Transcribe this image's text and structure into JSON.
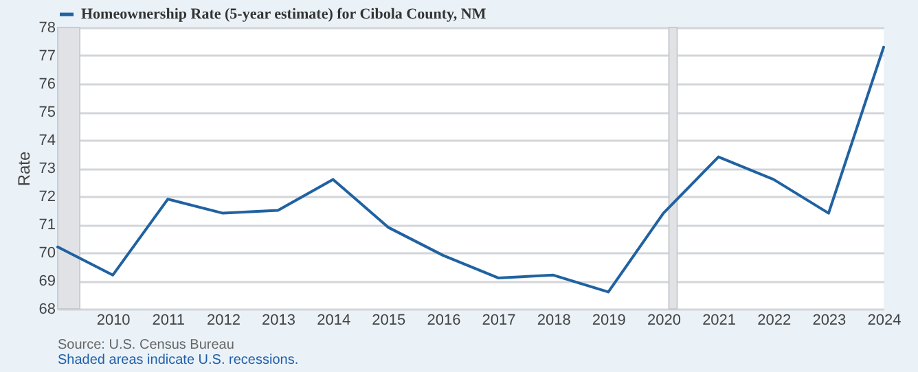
{
  "chart_data": {
    "type": "line",
    "ylabel": "Rate",
    "x": [
      2009,
      2010,
      2011,
      2012,
      2013,
      2014,
      2015,
      2016,
      2017,
      2018,
      2019,
      2020,
      2021,
      2022,
      2023,
      2024
    ],
    "series": [
      {
        "name": "Homeownership Rate (5-year estimate) for Cibola County, NM",
        "color": "#2062a1",
        "values": [
          70.2,
          69.2,
          71.9,
          71.4,
          71.5,
          72.6,
          70.9,
          69.9,
          69.1,
          69.2,
          68.6,
          71.4,
          73.4,
          72.6,
          71.4,
          77.3
        ]
      }
    ],
    "xlim": [
      2009,
      2024
    ],
    "xticks": [
      2010,
      2011,
      2012,
      2013,
      2014,
      2015,
      2016,
      2017,
      2018,
      2019,
      2020,
      2021,
      2022,
      2023,
      2024
    ],
    "ylim": [
      68,
      78
    ],
    "yticks": [
      68,
      69,
      70,
      71,
      72,
      73,
      74,
      75,
      76,
      77,
      78
    ],
    "bands": [
      {
        "axis": "x",
        "from": 2009,
        "to": 2009.4,
        "color": "#e1e2e6"
      },
      {
        "axis": "x",
        "from": 2020.1,
        "to": 2020.25,
        "color": "#e1e2e6"
      }
    ],
    "grid": "y",
    "legend": "top",
    "marker": "none",
    "line_style": "solid",
    "annotations": [
      "Source: U.S. Census Bureau",
      "Shaded areas indicate U.S. recessions."
    ]
  }
}
